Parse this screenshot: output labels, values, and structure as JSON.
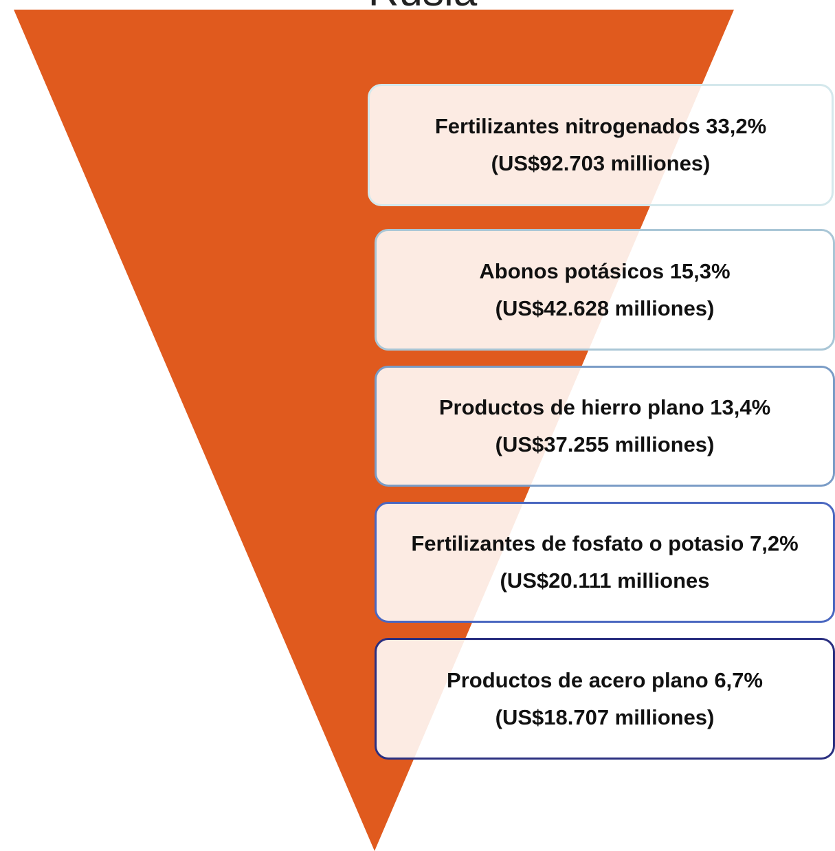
{
  "title": "Rusia",
  "items": [
    {
      "label": "Fertilizantes nitrogenados 33,2%",
      "value": "(US$92.703 milliones)"
    },
    {
      "label": "Abonos potásicos 15,3%",
      "value": "(US$42.628 milliones)"
    },
    {
      "label": "Productos de hierro plano 13,4%",
      "value": "(US$37.255 milliones)"
    },
    {
      "label": "Fertilizantes de fosfato  o potasio 7,2%",
      "value": "(US$20.111 milliones"
    },
    {
      "label": "Productos de acero plano 6,7%",
      "value": "(US$18.707 milliones)"
    }
  ]
}
